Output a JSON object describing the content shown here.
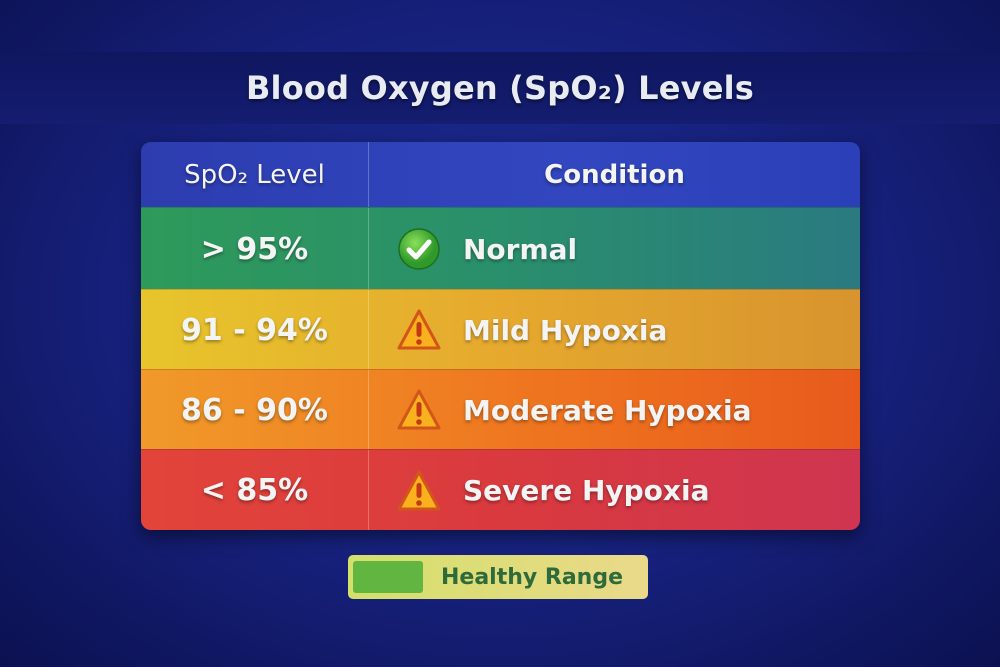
{
  "title": "Blood Oxygen (SpO₂) Levels",
  "table": {
    "headers": [
      "SpO₂ Level",
      "Condition"
    ],
    "rows": [
      {
        "level": "> 95%",
        "condition": "Normal",
        "icon": "check-circle-icon",
        "color": "#2e9a5a"
      },
      {
        "level": "91 - 94%",
        "condition": "Mild Hypoxia",
        "icon": "warning-triangle-icon",
        "color": "#e7c52c"
      },
      {
        "level": "86 - 90%",
        "condition": "Moderate Hypoxia",
        "icon": "warning-triangle-icon",
        "color": "#ef7820"
      },
      {
        "level": "< 85%",
        "condition": "Severe Hypoxia",
        "icon": "warning-triangle-icon",
        "color": "#d93a3e"
      }
    ]
  },
  "legend": {
    "label": "Healthy Range",
    "swatch_color": "#62b540"
  }
}
